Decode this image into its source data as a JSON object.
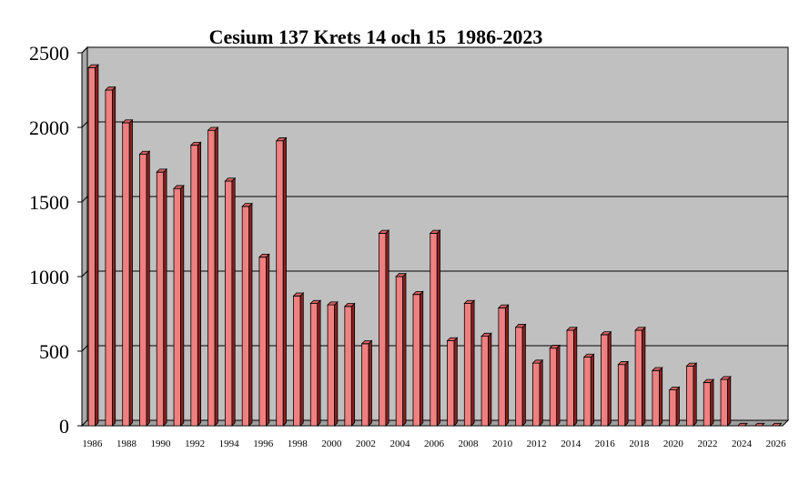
{
  "chart_data": {
    "type": "bar",
    "title": "Cesium 137 Krets 14 och 15  1986-2023",
    "xlabel": "",
    "ylabel": "",
    "ylim": [
      0,
      2500
    ],
    "yticks": [
      0,
      500,
      1000,
      1500,
      2000,
      2500
    ],
    "grid": true,
    "legend": "none",
    "style": "3d-columns",
    "colors": {
      "bar": "#f08080",
      "bar_side": "#8b2020",
      "bar_top": "#d06060",
      "plot_bg": "#c0c0c0",
      "floor": "#a0a0a0",
      "gridline": "#000000"
    },
    "categories": [
      "1986",
      "1987",
      "1988",
      "1989",
      "1990",
      "1991",
      "1992",
      "1993",
      "1994",
      "1995",
      "1996",
      "1997",
      "1998",
      "1999",
      "2000",
      "2001",
      "2002",
      "2003",
      "2004",
      "2005",
      "2006",
      "2007",
      "2008",
      "2009",
      "2010",
      "2011",
      "2012",
      "2013",
      "2014",
      "2015",
      "2016",
      "2017",
      "2018",
      "2019",
      "2020",
      "2021",
      "2022",
      "2023",
      "2024",
      "2025",
      "2026"
    ],
    "xtick_labels": [
      "1986",
      "1988",
      "1990",
      "1992",
      "1994",
      "1996",
      "1998",
      "2000",
      "2002",
      "2004",
      "2006",
      "2008",
      "2010",
      "2012",
      "2014",
      "2016",
      "2018",
      "2020",
      "2022",
      "2024",
      "2026"
    ],
    "values": [
      2400,
      2250,
      2030,
      1820,
      1700,
      1590,
      1880,
      1980,
      1640,
      1470,
      1130,
      1910,
      870,
      820,
      810,
      800,
      550,
      1290,
      1000,
      880,
      1290,
      570,
      820,
      600,
      790,
      660,
      420,
      520,
      640,
      460,
      610,
      410,
      640,
      370,
      240,
      400,
      290,
      310,
      0,
      0,
      0
    ]
  }
}
